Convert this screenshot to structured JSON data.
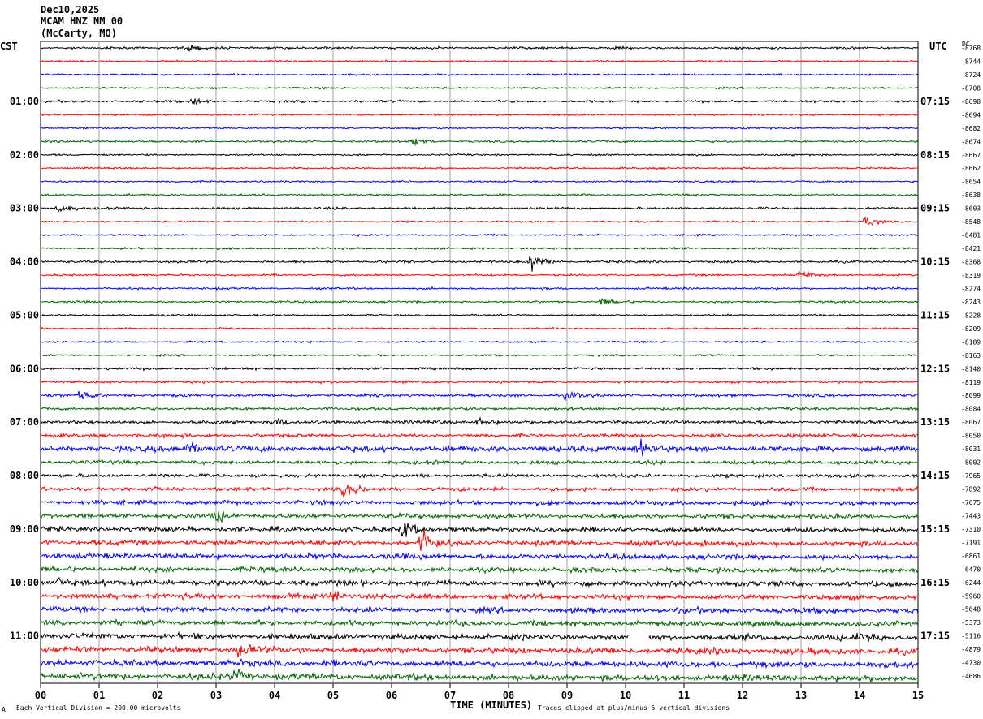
{
  "header": {
    "date": "Dec10,2025",
    "station": "MCAM HNZ NM 00",
    "location": "(McCarty, MO)"
  },
  "left_timezone": "CST",
  "right_timezone": "UTC",
  "dc_label": "DC",
  "footer": {
    "mark": "A",
    "division_note": "Each Vertical Division =  200.00 microvolts",
    "clip_note": "Traces clipped at plus/minus 5 vertical divisions"
  },
  "colors": {
    "traces": [
      "#000000",
      "#ff0000",
      "#0000ff",
      "#006400"
    ],
    "grid": "#a0a0a0"
  },
  "chart_data": {
    "type": "line",
    "title": "",
    "xlabel": "TIME (MINUTES)",
    "ylabel": "",
    "xlim": [
      0,
      15
    ],
    "x_ticks": [
      "00",
      "01",
      "02",
      "03",
      "04",
      "05",
      "06",
      "07",
      "08",
      "09",
      "10",
      "11",
      "12",
      "13",
      "14",
      "15"
    ],
    "left_hour_labels": [
      "01:00",
      "02:00",
      "03:00",
      "04:00",
      "05:00",
      "06:00",
      "07:00",
      "08:00",
      "09:00",
      "10:00",
      "11:00"
    ],
    "right_hour_labels": [
      "07:15",
      "08:15",
      "09:15",
      "10:15",
      "11:15",
      "12:15",
      "13:15",
      "14:15",
      "15:15",
      "16:15",
      "17:15"
    ],
    "trace_minutes": 15,
    "trace_count": 48,
    "dc_offsets": [
      "-8768",
      "-8744",
      "-8724",
      "-8708",
      "-8698",
      "-8694",
      "-8682",
      "-8674",
      "-8667",
      "-8662",
      "-8654",
      "-8638",
      "-8603",
      "-8548",
      "-8481",
      "-8421",
      "-8368",
      "-8319",
      "-8274",
      "-8243",
      "-8228",
      "-8209",
      "-8189",
      "-8163",
      "-8140",
      "-8119",
      "-8099",
      "-8084",
      "-8067",
      "-8050",
      "-8031",
      "-8002",
      "-7965",
      "-7892",
      "-7675",
      "-7443",
      "-7310",
      "-7191",
      "-6861",
      "-6470",
      "-6244",
      "-5960",
      "-5648",
      "-5373",
      "-5116",
      "-4879",
      "-4730",
      "-4686"
    ],
    "noise_levels": [
      1.0,
      0.8,
      0.8,
      0.8,
      1.0,
      0.8,
      0.8,
      0.9,
      0.8,
      0.8,
      0.8,
      0.9,
      1.0,
      0.8,
      0.8,
      0.9,
      1.0,
      0.9,
      0.9,
      0.9,
      0.8,
      0.8,
      0.8,
      0.8,
      1.1,
      1.1,
      1.3,
      1.3,
      1.5,
      1.6,
      2.6,
      1.7,
      1.6,
      1.8,
      2.0,
      2.0,
      2.1,
      2.2,
      2.3,
      2.3,
      2.5,
      2.4,
      2.4,
      2.4,
      2.6,
      2.8,
      2.8,
      2.9
    ],
    "events": [
      {
        "trace": 0,
        "minute": 2.5,
        "amplitude": 3
      },
      {
        "trace": 4,
        "minute": 2.6,
        "amplitude": 3
      },
      {
        "trace": 7,
        "minute": 6.4,
        "amplitude": 3
      },
      {
        "trace": 12,
        "minute": 0.3,
        "amplitude": 4
      },
      {
        "trace": 13,
        "minute": 14.1,
        "amplitude": 5
      },
      {
        "trace": 16,
        "minute": 8.4,
        "amplitude": 8
      },
      {
        "trace": 17,
        "minute": 13.0,
        "amplitude": 4
      },
      {
        "trace": 19,
        "minute": 9.6,
        "amplitude": 3
      },
      {
        "trace": 26,
        "minute": 0.7,
        "amplitude": 4
      },
      {
        "trace": 26,
        "minute": 9.0,
        "amplitude": 4
      },
      {
        "trace": 28,
        "minute": 4.0,
        "amplitude": 4
      },
      {
        "trace": 28,
        "minute": 7.5,
        "amplitude": 3
      },
      {
        "trace": 30,
        "minute": 2.5,
        "amplitude": 7
      },
      {
        "trace": 30,
        "minute": 10.2,
        "amplitude": 7
      },
      {
        "trace": 33,
        "minute": 5.2,
        "amplitude": 6
      },
      {
        "trace": 35,
        "minute": 3.0,
        "amplitude": 5
      },
      {
        "trace": 36,
        "minute": 6.2,
        "amplitude": 8
      },
      {
        "trace": 37,
        "minute": 6.5,
        "amplitude": 12
      },
      {
        "trace": 37,
        "minute": 11.3,
        "amplitude": 4
      },
      {
        "trace": 40,
        "minute": 0.3,
        "amplitude": 4
      },
      {
        "trace": 41,
        "minute": 5.0,
        "amplitude": 4
      },
      {
        "trace": 44,
        "minute": 14.0,
        "amplitude": 6
      },
      {
        "trace": 45,
        "minute": 3.4,
        "amplitude": 5
      },
      {
        "trace": 47,
        "minute": 3.3,
        "amplitude": 5
      }
    ],
    "gaps": [
      {
        "trace": 44,
        "start": 10.05,
        "end": 10.4
      }
    ]
  }
}
